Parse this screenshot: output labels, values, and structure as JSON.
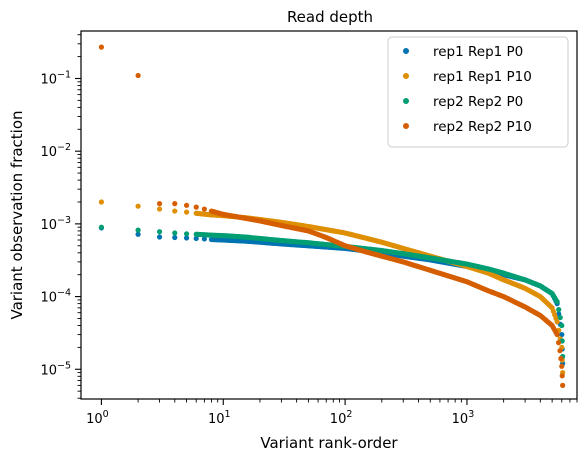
{
  "chart_data": {
    "type": "scatter",
    "title": "Read depth",
    "xlabel": "Variant rank-order",
    "ylabel": "Variant observation fraction",
    "xscale": "log",
    "yscale": "log",
    "xlim": [
      0.68,
      8000
    ],
    "ylim": [
      3.9e-06,
      0.45
    ],
    "x_ticks": [
      {
        "value": 1,
        "base": "10",
        "exp": "0"
      },
      {
        "value": 10,
        "base": "10",
        "exp": "1"
      },
      {
        "value": 100,
        "base": "10",
        "exp": "2"
      },
      {
        "value": 1000,
        "base": "10",
        "exp": "3"
      }
    ],
    "y_ticks": [
      {
        "value": 1e-05,
        "base": "10",
        "exp": "−5"
      },
      {
        "value": 0.0001,
        "base": "10",
        "exp": "−4"
      },
      {
        "value": 0.001,
        "base": "10",
        "exp": "−3"
      },
      {
        "value": 0.01,
        "base": "10",
        "exp": "−2"
      },
      {
        "value": 0.1,
        "base": "10",
        "exp": "−1"
      }
    ],
    "grid": false,
    "legend_position": "top-right",
    "series": [
      {
        "name": "rep1 Rep1 P0",
        "color": "#0173b2",
        "points": [
          [
            1,
            0.00088
          ],
          [
            2,
            0.00072
          ],
          [
            3,
            0.00066
          ],
          [
            4,
            0.00065
          ],
          [
            5,
            0.00064
          ],
          [
            6,
            0.00063
          ],
          [
            7,
            0.00062
          ],
          [
            8,
            0.00061
          ],
          [
            10,
            0.0006
          ],
          [
            15,
            0.00058
          ],
          [
            20,
            0.00056
          ],
          [
            30,
            0.00053
          ],
          [
            50,
            0.0005
          ],
          [
            100,
            0.00046
          ],
          [
            200,
            0.0004
          ],
          [
            300,
            0.00036
          ],
          [
            500,
            0.00032
          ],
          [
            1000,
            0.00026
          ],
          [
            1500,
            0.00023
          ],
          [
            2000,
            0.0002
          ],
          [
            3000,
            0.00017
          ],
          [
            4000,
            0.00014
          ],
          [
            5000,
            0.00011
          ],
          [
            5500,
            8e-05
          ],
          [
            6000,
            3e-05
          ],
          [
            6100,
            1.2e-05
          ]
        ]
      },
      {
        "name": "rep1 Rep1 P10",
        "color": "#de8f05",
        "points": [
          [
            1,
            0.002
          ],
          [
            2,
            0.00175
          ],
          [
            3,
            0.0016
          ],
          [
            4,
            0.0015
          ],
          [
            5,
            0.00145
          ],
          [
            6,
            0.0014
          ],
          [
            8,
            0.00133
          ],
          [
            10,
            0.0013
          ],
          [
            15,
            0.00122
          ],
          [
            20,
            0.00115
          ],
          [
            30,
            0.00105
          ],
          [
            50,
            0.00092
          ],
          [
            100,
            0.00075
          ],
          [
            200,
            0.00056
          ],
          [
            300,
            0.00046
          ],
          [
            500,
            0.00036
          ],
          [
            1000,
            0.00026
          ],
          [
            1500,
            0.00021
          ],
          [
            2000,
            0.00017
          ],
          [
            3000,
            0.00013
          ],
          [
            4000,
            0.0001
          ],
          [
            5000,
            7e-05
          ],
          [
            5500,
            4.5e-05
          ],
          [
            6000,
            2e-05
          ],
          [
            6100,
            9e-06
          ]
        ]
      },
      {
        "name": "rep2 Rep2 P0",
        "color": "#029e73",
        "points": [
          [
            1,
            0.0009
          ],
          [
            2,
            0.00082
          ],
          [
            3,
            0.00078
          ],
          [
            4,
            0.00075
          ],
          [
            5,
            0.00073
          ],
          [
            6,
            0.00072
          ],
          [
            8,
            0.0007
          ],
          [
            10,
            0.00069
          ],
          [
            15,
            0.00066
          ],
          [
            20,
            0.00063
          ],
          [
            30,
            0.00059
          ],
          [
            50,
            0.00055
          ],
          [
            100,
            0.00049
          ],
          [
            200,
            0.00043
          ],
          [
            300,
            0.00039
          ],
          [
            500,
            0.00034
          ],
          [
            1000,
            0.00028
          ],
          [
            1500,
            0.00024
          ],
          [
            2000,
            0.00021
          ],
          [
            3000,
            0.00017
          ],
          [
            4000,
            0.00014
          ],
          [
            5000,
            0.00011
          ],
          [
            5500,
            8.5e-05
          ],
          [
            6000,
            4e-05
          ],
          [
            6100,
            1.5e-05
          ]
        ]
      },
      {
        "name": "rep2 Rep2 P10",
        "color": "#d55e00",
        "points": [
          [
            1,
            0.27
          ],
          [
            2,
            0.11
          ],
          [
            3,
            0.0019
          ],
          [
            4,
            0.0019
          ],
          [
            5,
            0.0018
          ],
          [
            6,
            0.0017
          ],
          [
            7,
            0.0016
          ],
          [
            8,
            0.0015
          ],
          [
            10,
            0.00135
          ],
          [
            15,
            0.0012
          ],
          [
            20,
            0.0011
          ],
          [
            30,
            0.00095
          ],
          [
            50,
            0.0008
          ],
          [
            70,
            0.00065
          ],
          [
            100,
            0.0005
          ],
          [
            150,
            0.00041
          ],
          [
            200,
            0.00036
          ],
          [
            300,
            0.0003
          ],
          [
            500,
            0.00023
          ],
          [
            1000,
            0.00016
          ],
          [
            1500,
            0.00012
          ],
          [
            2000,
            0.0001
          ],
          [
            3000,
            7.2e-05
          ],
          [
            4000,
            5.5e-05
          ],
          [
            5000,
            4e-05
          ],
          [
            5500,
            3e-05
          ],
          [
            5800,
            1.8e-05
          ],
          [
            6000,
            1.1e-05
          ],
          [
            6100,
            6e-06
          ]
        ]
      }
    ]
  }
}
